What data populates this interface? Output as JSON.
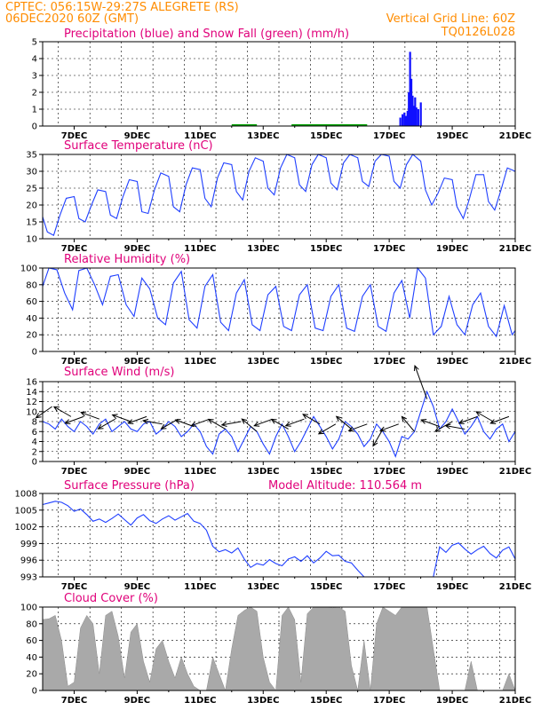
{
  "header": {
    "line1": "CPTEC:   056:15W-29:27S   ALEGRETE (RS)",
    "line2": "06DEC2020 60Z (GMT)",
    "grid_note": "Vertical Grid Line: 60Z",
    "code": "TQ0126L028"
  },
  "colors": {
    "header": "#ff8c00",
    "title": "#e0007a",
    "line": "#1f3fff",
    "precip": "#1010ff",
    "snow": "#00a000",
    "cloud": "#a9a9a9"
  },
  "x_axis": {
    "labels": [
      "7DEC",
      "9DEC",
      "11DEC",
      "13DEC",
      "15DEC",
      "17DEC",
      "19DEC",
      "21DEC"
    ],
    "day_range": [
      6.0,
      21.0
    ]
  },
  "chart_data": [
    {
      "id": "precip",
      "type": "bar",
      "title": "Precipitation (blue) and Snow Fall (green) (mm/h)",
      "ylim": [
        0,
        5
      ],
      "yticks": [
        "0",
        "1",
        "2",
        "3",
        "4",
        "5"
      ],
      "x": [
        17.35,
        17.42,
        17.48,
        17.53,
        17.58,
        17.62,
        17.66,
        17.7,
        17.74,
        17.78,
        17.82,
        17.86,
        17.92,
        18.0
      ],
      "values": [
        0.5,
        0.7,
        0.8,
        0.6,
        0.9,
        2.0,
        4.4,
        2.8,
        1.8,
        1.2,
        1.7,
        1.1,
        1.0,
        1.4
      ],
      "snow_segments": [
        [
          12.0,
          12.8
        ],
        [
          13.9,
          16.3
        ]
      ]
    },
    {
      "id": "temp",
      "type": "line",
      "title": "Surface Temperature (nC)",
      "ylim": [
        10,
        35
      ],
      "yticks": [
        "10",
        "15",
        "20",
        "25",
        "30",
        "35"
      ],
      "x": [
        6.0,
        6.15,
        6.35,
        6.55,
        6.75,
        7.0,
        7.15,
        7.35,
        7.55,
        7.75,
        8.0,
        8.15,
        8.35,
        8.55,
        8.75,
        9.0,
        9.15,
        9.35,
        9.55,
        9.75,
        10.0,
        10.15,
        10.35,
        10.55,
        10.75,
        11.0,
        11.15,
        11.35,
        11.55,
        11.75,
        12.0,
        12.15,
        12.35,
        12.55,
        12.75,
        13.0,
        13.15,
        13.35,
        13.55,
        13.75,
        14.0,
        14.15,
        14.35,
        14.55,
        14.75,
        15.0,
        15.15,
        15.35,
        15.55,
        15.75,
        16.0,
        16.15,
        16.35,
        16.55,
        16.75,
        17.0,
        17.15,
        17.35,
        17.55,
        17.75,
        18.0,
        18.15,
        18.35,
        18.55,
        18.75,
        19.0,
        19.15,
        19.35,
        19.55,
        19.75,
        20.0,
        20.15,
        20.35,
        20.55,
        20.75,
        21.0
      ],
      "values": [
        16.5,
        12.0,
        11.0,
        17.0,
        22.0,
        22.5,
        16.0,
        15.0,
        20.0,
        24.5,
        24.0,
        17.0,
        16.0,
        22.5,
        27.5,
        27.0,
        18.0,
        17.5,
        24.5,
        29.5,
        28.5,
        19.5,
        18.0,
        26.0,
        31.0,
        30.5,
        22.0,
        19.5,
        28.0,
        32.5,
        32.0,
        24.0,
        21.5,
        30.0,
        34.0,
        33.0,
        25.0,
        23.0,
        31.0,
        35.0,
        34.0,
        26.0,
        24.0,
        32.0,
        35.0,
        34.0,
        26.5,
        24.5,
        32.5,
        35.0,
        34.0,
        27.0,
        25.5,
        33.0,
        35.0,
        34.5,
        27.0,
        25.0,
        32.0,
        35.0,
        33.0,
        24.5,
        20.0,
        23.5,
        28.0,
        27.5,
        19.5,
        16.0,
        22.0,
        29.0,
        29.0,
        21.0,
        18.5,
        24.5,
        31.0,
        30.0
      ]
    },
    {
      "id": "rh",
      "type": "line",
      "title": "Relative Humidity (%)",
      "ylim": [
        0,
        100
      ],
      "yticks": [
        "0",
        "20",
        "40",
        "60",
        "80",
        "100"
      ],
      "x": [
        6.0,
        6.2,
        6.45,
        6.7,
        6.95,
        7.15,
        7.4,
        7.65,
        7.9,
        8.15,
        8.4,
        8.65,
        8.9,
        9.15,
        9.4,
        9.65,
        9.9,
        10.15,
        10.4,
        10.65,
        10.9,
        11.15,
        11.4,
        11.65,
        11.9,
        12.15,
        12.4,
        12.65,
        12.9,
        13.15,
        13.4,
        13.65,
        13.9,
        14.15,
        14.4,
        14.65,
        14.9,
        15.15,
        15.4,
        15.65,
        15.9,
        16.15,
        16.4,
        16.65,
        16.9,
        17.15,
        17.4,
        17.65,
        17.9,
        18.15,
        18.4,
        18.65,
        18.9,
        19.15,
        19.4,
        19.65,
        19.9,
        20.15,
        20.4,
        20.65,
        20.9,
        21.0
      ],
      "values": [
        78.0,
        100.0,
        98.0,
        70.0,
        50.0,
        97.0,
        100.0,
        80.0,
        56.0,
        90.0,
        92.0,
        56.0,
        42.0,
        88.0,
        75.0,
        40.0,
        32.0,
        82.0,
        96.0,
        38.0,
        28.0,
        78.0,
        92.0,
        35.0,
        25.0,
        70.0,
        86.0,
        32.0,
        25.0,
        68.0,
        78.0,
        30.0,
        25.0,
        68.0,
        80.0,
        28.0,
        25.0,
        66.0,
        80.0,
        28.0,
        24.0,
        66.0,
        80.0,
        30.0,
        24.0,
        70.0,
        85.0,
        40.0,
        100.0,
        88.0,
        20.0,
        30.0,
        66.0,
        32.0,
        20.0,
        56.0,
        70.0,
        30.0,
        18.0,
        55.0,
        20.0,
        25.0
      ]
    },
    {
      "id": "wind",
      "type": "line",
      "title": "Surface Wind (m/s)",
      "ylim": [
        0,
        16
      ],
      "yticks": [
        "0",
        "2",
        "4",
        "6",
        "8",
        "10",
        "12",
        "14",
        "16"
      ],
      "x": [
        6.0,
        6.2,
        6.4,
        6.6,
        6.8,
        7.0,
        7.2,
        7.4,
        7.6,
        7.8,
        8.0,
        8.2,
        8.4,
        8.6,
        8.8,
        9.0,
        9.2,
        9.4,
        9.6,
        9.8,
        10.0,
        10.2,
        10.4,
        10.6,
        10.8,
        11.0,
        11.2,
        11.4,
        11.6,
        11.8,
        12.0,
        12.2,
        12.4,
        12.6,
        12.8,
        13.0,
        13.2,
        13.4,
        13.6,
        13.8,
        14.0,
        14.2,
        14.4,
        14.6,
        14.8,
        15.0,
        15.2,
        15.4,
        15.6,
        15.8,
        16.0,
        16.2,
        16.4,
        16.6,
        16.8,
        17.0,
        17.2,
        17.4,
        17.6,
        17.8,
        18.0,
        18.2,
        18.4,
        18.6,
        18.8,
        19.0,
        19.2,
        19.4,
        19.6,
        19.8,
        20.0,
        20.2,
        20.4,
        20.6,
        20.8,
        21.0
      ],
      "values": [
        8.0,
        7.5,
        6.5,
        8.5,
        7.0,
        6.0,
        8.0,
        7.0,
        5.5,
        7.5,
        8.5,
        6.0,
        7.0,
        8.0,
        6.5,
        6.0,
        7.5,
        8.0,
        5.5,
        6.5,
        8.0,
        7.0,
        5.0,
        6.0,
        7.5,
        6.0,
        3.0,
        1.5,
        5.5,
        6.5,
        5.0,
        2.0,
        4.5,
        7.0,
        6.0,
        3.5,
        1.5,
        5.0,
        7.5,
        5.0,
        2.0,
        4.0,
        6.5,
        9.0,
        7.0,
        5.0,
        2.5,
        4.5,
        8.0,
        7.0,
        5.5,
        3.0,
        4.5,
        7.5,
        6.0,
        4.0,
        1.0,
        5.0,
        4.5,
        6.0,
        10.0,
        14.0,
        11.0,
        6.5,
        8.0,
        10.5,
        8.0,
        5.5,
        7.0,
        9.0,
        6.0,
        4.5,
        6.5,
        7.5,
        4.0,
        6.0
      ],
      "arrows_note": "Black vectors indicate wind direction",
      "arrows": [
        [
          6.3,
          11.0,
          215
        ],
        [
          6.9,
          9.0,
          150
        ],
        [
          7.3,
          9.0,
          200
        ],
        [
          7.8,
          8.5,
          160
        ],
        [
          8.3,
          8.5,
          210
        ],
        [
          8.8,
          8.0,
          160
        ],
        [
          9.3,
          9.0,
          200
        ],
        [
          9.8,
          7.5,
          170
        ],
        [
          10.3,
          8.5,
          210
        ],
        [
          10.8,
          7.0,
          160
        ],
        [
          11.3,
          8.5,
          200
        ],
        [
          11.8,
          6.5,
          150
        ],
        [
          12.3,
          8.0,
          190
        ],
        [
          12.8,
          6.0,
          140
        ],
        [
          13.3,
          8.5,
          200
        ],
        [
          13.8,
          6.5,
          150
        ],
        [
          14.3,
          8.5,
          200
        ],
        [
          14.8,
          7.5,
          150
        ],
        [
          15.3,
          7.5,
          210
        ],
        [
          15.8,
          6.5,
          140
        ],
        [
          16.3,
          7.5,
          200
        ],
        [
          16.8,
          6.5,
          240
        ],
        [
          17.3,
          7.5,
          200
        ],
        [
          17.8,
          6.0,
          130
        ],
        [
          18.2,
          12.5,
          110
        ],
        [
          18.6,
          7.0,
          160
        ],
        [
          19.0,
          8.0,
          210
        ],
        [
          19.4,
          6.5,
          170
        ],
        [
          19.8,
          9.0,
          200
        ],
        [
          20.3,
          8.0,
          150
        ],
        [
          20.8,
          9.0,
          200
        ]
      ]
    },
    {
      "id": "pressure",
      "type": "line",
      "title": "Surface Pressure (hPa)",
      "subtitle": "Model Altitude: 110.564  m",
      "ylim": [
        993,
        1008
      ],
      "yticks": [
        "993",
        "996",
        "999",
        "1002",
        "1005",
        "1008"
      ],
      "x": [
        6.0,
        6.2,
        6.4,
        6.6,
        6.8,
        7.0,
        7.2,
        7.4,
        7.6,
        7.8,
        8.0,
        8.2,
        8.4,
        8.6,
        8.8,
        9.0,
        9.2,
        9.4,
        9.6,
        9.8,
        10.0,
        10.2,
        10.4,
        10.6,
        10.8,
        11.0,
        11.2,
        11.4,
        11.6,
        11.8,
        12.0,
        12.2,
        12.4,
        12.6,
        12.8,
        13.0,
        13.2,
        13.4,
        13.6,
        13.8,
        14.0,
        14.2,
        14.4,
        14.6,
        14.8,
        15.0,
        15.2,
        15.4,
        15.6,
        15.8,
        16.0,
        16.2,
        16.4,
        16.6,
        16.8,
        17.0,
        17.2,
        17.4,
        17.6,
        17.8,
        18.0,
        18.2,
        18.4,
        18.6,
        18.8,
        19.0,
        19.2,
        19.4,
        19.6,
        19.8,
        20.0,
        20.2,
        20.4,
        20.6,
        20.8,
        21.0
      ],
      "values": [
        1006.0,
        1006.3,
        1006.6,
        1006.4,
        1005.8,
        1004.8,
        1005.2,
        1004.2,
        1003.0,
        1003.4,
        1002.8,
        1003.5,
        1004.3,
        1003.3,
        1002.3,
        1003.6,
        1004.2,
        1003.1,
        1002.6,
        1003.4,
        1004.0,
        1003.2,
        1003.8,
        1004.4,
        1003.0,
        1002.6,
        1001.4,
        998.5,
        997.5,
        997.9,
        997.3,
        998.2,
        996.2,
        994.7,
        995.4,
        995.1,
        996.1,
        995.4,
        995.0,
        996.2,
        996.6,
        995.8,
        996.8,
        995.5,
        996.4,
        997.6,
        996.8,
        996.9,
        995.8,
        995.5,
        994.2,
        993.0,
        993.0,
        993.0,
        993.0,
        993.0,
        993.0,
        993.0,
        993.0,
        993.0,
        993.0,
        993.0,
        993.0,
        998.4,
        997.4,
        998.7,
        999.1,
        998.0,
        997.1,
        997.9,
        998.5,
        997.2,
        996.4,
        997.8,
        998.4,
        996.2
      ]
    },
    {
      "id": "cloud",
      "type": "area",
      "title": "Cloud Cover (%)",
      "ylim": [
        0,
        100
      ],
      "yticks": [
        "0",
        "20",
        "40",
        "60",
        "80",
        "100"
      ],
      "x": [
        6.0,
        6.2,
        6.4,
        6.6,
        6.8,
        7.0,
        7.2,
        7.4,
        7.6,
        7.8,
        8.0,
        8.2,
        8.4,
        8.6,
        8.8,
        9.0,
        9.2,
        9.4,
        9.6,
        9.8,
        10.0,
        10.2,
        10.4,
        10.6,
        10.8,
        11.0,
        11.2,
        11.4,
        11.6,
        11.8,
        12.0,
        12.2,
        12.4,
        12.6,
        12.8,
        13.0,
        13.2,
        13.4,
        13.6,
        13.8,
        14.0,
        14.2,
        14.4,
        14.6,
        14.8,
        15.0,
        15.2,
        15.4,
        15.6,
        15.8,
        16.0,
        16.2,
        16.4,
        16.6,
        16.8,
        17.0,
        17.2,
        17.4,
        17.6,
        17.8,
        18.0,
        18.2,
        18.4,
        18.6,
        18.8,
        19.0,
        19.2,
        19.4,
        19.6,
        19.8,
        20.0,
        20.2,
        20.4,
        20.6,
        20.8,
        21.0
      ],
      "values": [
        85.0,
        86.0,
        90.0,
        60.0,
        5.0,
        10.0,
        75.0,
        90.0,
        80.0,
        20.0,
        90.0,
        95.0,
        65.0,
        15.0,
        70.0,
        80.0,
        35.0,
        10.0,
        50.0,
        60.0,
        35.0,
        15.0,
        40.0,
        20.0,
        5.0,
        0.0,
        0.0,
        40.0,
        20.0,
        0.0,
        50.0,
        90.0,
        96.0,
        100.0,
        95.0,
        40.0,
        10.0,
        0.0,
        90.0,
        100.0,
        85.0,
        10.0,
        92.0,
        100.0,
        100.0,
        100.0,
        99.0,
        100.0,
        95.0,
        30.0,
        0.0,
        60.0,
        0.0,
        80.0,
        100.0,
        95.0,
        90.0,
        100.0,
        100.0,
        100.0,
        100.0,
        100.0,
        50.0,
        0.0,
        0.0,
        0.0,
        0.0,
        0.0,
        35.0,
        0.0,
        0.0,
        0.0,
        0.0,
        0.0,
        20.0,
        0.0
      ]
    }
  ]
}
